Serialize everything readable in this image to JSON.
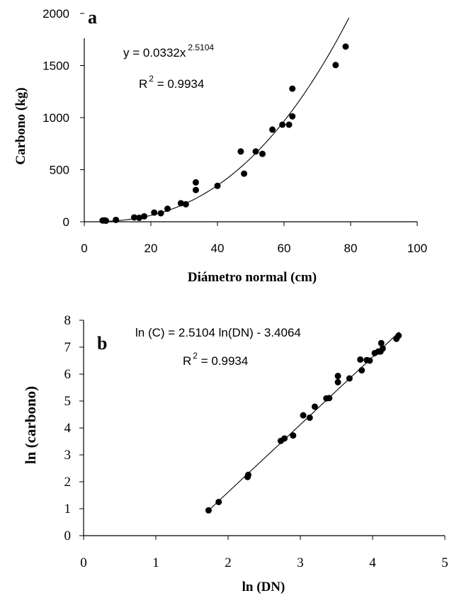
{
  "chart_data": [
    {
      "panel": "a",
      "type": "scatter",
      "xlabel": "Diámetro normal (cm)",
      "ylabel": "Carbono (kg)",
      "xlim": [
        0,
        100
      ],
      "ylim": [
        0,
        2000
      ],
      "x_ticks": [
        "0",
        "20",
        "40",
        "60",
        "80",
        "100"
      ],
      "y_ticks": [
        "0",
        "500",
        "1000",
        "1500",
        "2000"
      ],
      "grid": false,
      "trendline": {
        "type": "power",
        "a": 0.0332,
        "b": 2.5104,
        "equation_prefix": "y = 0.0332x",
        "equation_exponent": "2.5104",
        "r2_prefix": "R",
        "r2_exponent": "2",
        "r2_value": " = 0.9934"
      },
      "points": [
        {
          "x": 5.5,
          "y": 12
        },
        {
          "x": 6.0,
          "y": 14
        },
        {
          "x": 6.5,
          "y": 10
        },
        {
          "x": 9.5,
          "y": 18
        },
        {
          "x": 15.0,
          "y": 42
        },
        {
          "x": 16.5,
          "y": 38
        },
        {
          "x": 18.0,
          "y": 52
        },
        {
          "x": 21.0,
          "y": 88
        },
        {
          "x": 23.0,
          "y": 82
        },
        {
          "x": 25.0,
          "y": 125
        },
        {
          "x": 29.0,
          "y": 178
        },
        {
          "x": 30.5,
          "y": 168
        },
        {
          "x": 33.5,
          "y": 305
        },
        {
          "x": 33.5,
          "y": 378
        },
        {
          "x": 40.0,
          "y": 345
        },
        {
          "x": 47.0,
          "y": 675
        },
        {
          "x": 48.0,
          "y": 462
        },
        {
          "x": 51.5,
          "y": 675
        },
        {
          "x": 53.5,
          "y": 652
        },
        {
          "x": 56.5,
          "y": 885
        },
        {
          "x": 59.5,
          "y": 932
        },
        {
          "x": 61.5,
          "y": 932
        },
        {
          "x": 62.5,
          "y": 1012
        },
        {
          "x": 62.5,
          "y": 1278
        },
        {
          "x": 75.5,
          "y": 1505
        },
        {
          "x": 78.5,
          "y": 1682
        }
      ]
    },
    {
      "panel": "b",
      "type": "scatter",
      "xlabel": "ln (DN)",
      "ylabel": "ln (carbono)",
      "xlim": [
        0,
        5
      ],
      "ylim": [
        0,
        8
      ],
      "x_ticks": [
        "0",
        "1",
        "2",
        "3",
        "4",
        "5"
      ],
      "y_ticks": [
        "0",
        "1",
        "2",
        "3",
        "4",
        "5",
        "6",
        "7",
        "8"
      ],
      "grid": false,
      "trendline": {
        "type": "linear",
        "slope": 2.5104,
        "intercept": -3.4064,
        "x_range": [
          1.72,
          4.37
        ],
        "equation": "ln (C) = 2.5104 ln(DN)  - 3.4064",
        "r2_prefix": "R",
        "r2_exponent": "2",
        "r2_value": " = 0.9934"
      },
      "points": [
        {
          "x": 1.73,
          "y": 0.94
        },
        {
          "x": 1.87,
          "y": 1.25
        },
        {
          "x": 2.27,
          "y": 2.18
        },
        {
          "x": 2.28,
          "y": 2.26
        },
        {
          "x": 2.73,
          "y": 3.52
        },
        {
          "x": 2.78,
          "y": 3.61
        },
        {
          "x": 2.9,
          "y": 3.72
        },
        {
          "x": 3.04,
          "y": 4.47
        },
        {
          "x": 3.13,
          "y": 4.38
        },
        {
          "x": 3.2,
          "y": 4.79
        },
        {
          "x": 3.36,
          "y": 5.1
        },
        {
          "x": 3.4,
          "y": 5.11
        },
        {
          "x": 3.52,
          "y": 5.7
        },
        {
          "x": 3.52,
          "y": 5.93
        },
        {
          "x": 3.68,
          "y": 5.84
        },
        {
          "x": 3.83,
          "y": 6.54
        },
        {
          "x": 3.85,
          "y": 6.14
        },
        {
          "x": 3.92,
          "y": 6.52
        },
        {
          "x": 3.96,
          "y": 6.5
        },
        {
          "x": 4.03,
          "y": 6.78
        },
        {
          "x": 4.08,
          "y": 6.84
        },
        {
          "x": 4.11,
          "y": 6.84
        },
        {
          "x": 4.12,
          "y": 7.15
        },
        {
          "x": 4.14,
          "y": 6.95
        },
        {
          "x": 4.33,
          "y": 7.31
        },
        {
          "x": 4.36,
          "y": 7.43
        }
      ]
    }
  ]
}
